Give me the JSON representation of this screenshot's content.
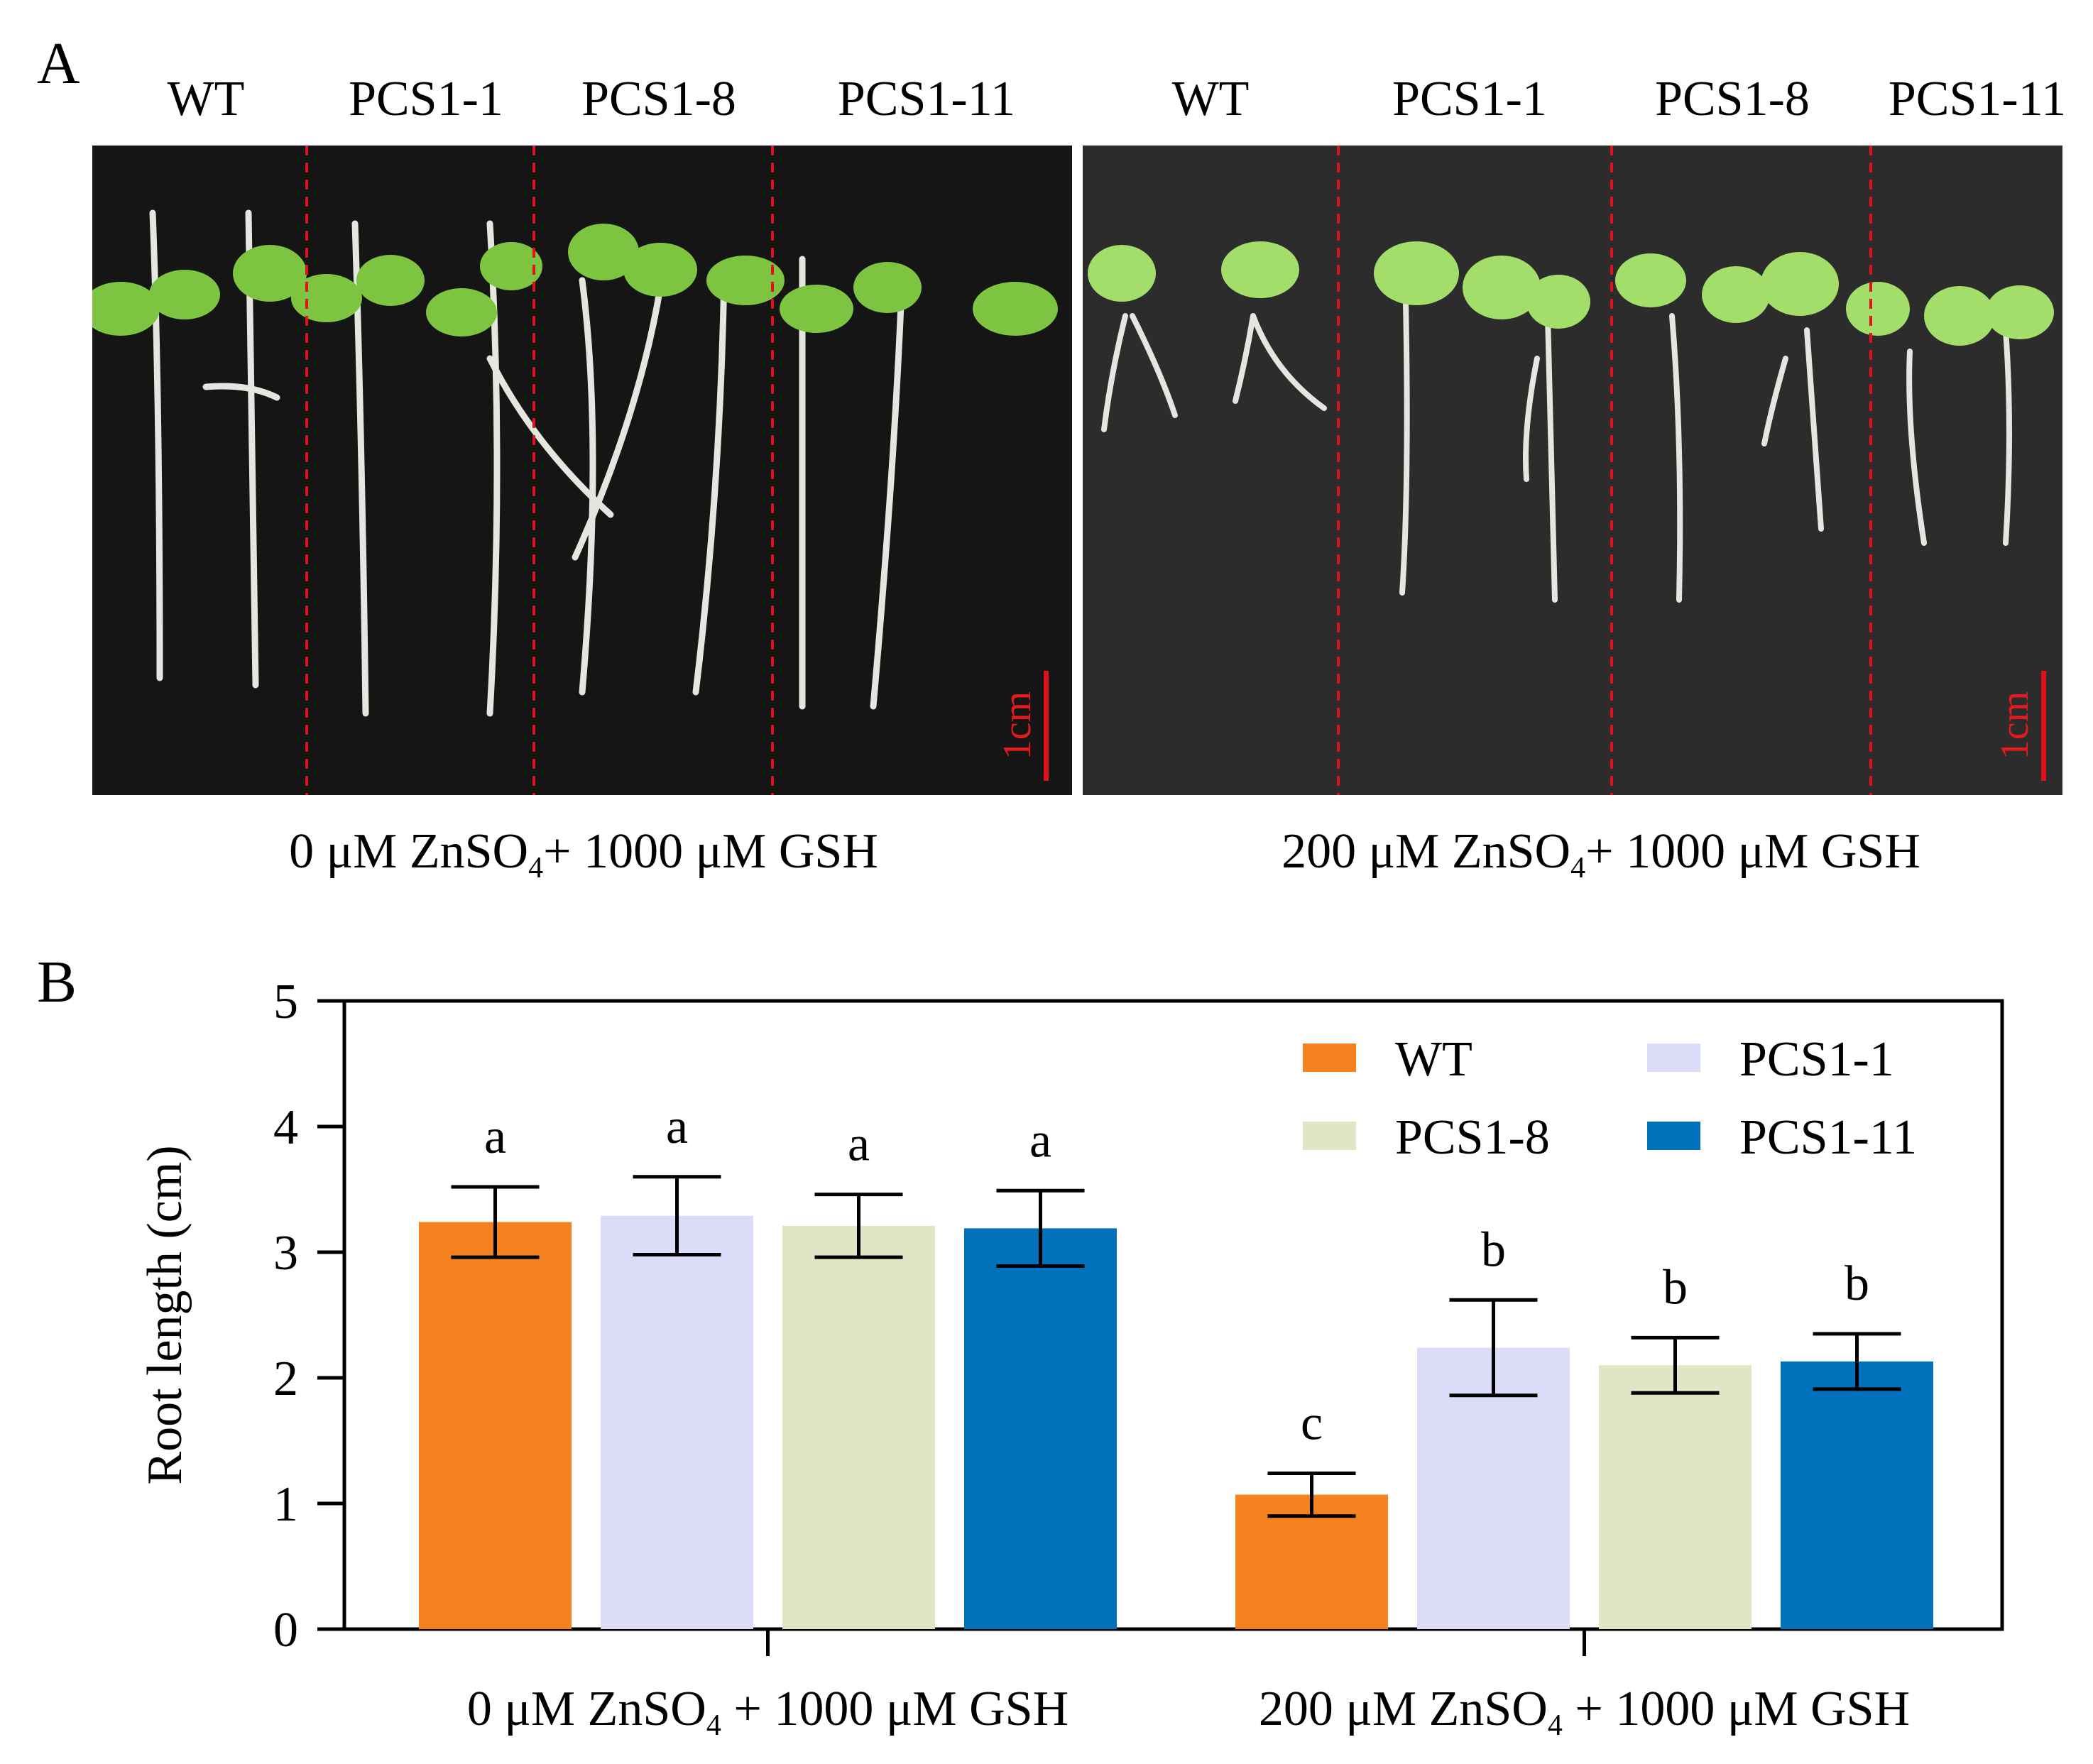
{
  "panel_a": {
    "letter": "A",
    "left_photo": {
      "genotypes": [
        "WT",
        "PCS1-1",
        "PCS1-8",
        "PCS1-11"
      ],
      "condition": {
        "pre": "0 μM ZnSO",
        "sub": "4",
        "post": "+ 1000 μM GSH"
      },
      "scale_bar": "1cm"
    },
    "right_photo": {
      "genotypes": [
        "WT",
        "PCS1-1",
        "PCS1-8",
        "PCS1-11"
      ],
      "condition": {
        "pre": "200 μM ZnSO",
        "sub": "4",
        "post": "+ 1000 μM GSH"
      },
      "scale_bar": "1cm"
    }
  },
  "panel_b": {
    "letter": "B"
  },
  "colors": {
    "WT": "#f5821f",
    "PCS1-1": "#dcdcf8",
    "PCS1-8": "#e0e5c6",
    "PCS1-11": "#0071ba",
    "divider": "#e0111a",
    "photo_left_bg": "#141414",
    "photo_right_bg": "#2a2a2a"
  },
  "chart_data": {
    "type": "bar",
    "ylabel": "Root length (cm)",
    "ylim": [
      0,
      5
    ],
    "yticks": [
      0,
      1,
      2,
      3,
      4,
      5
    ],
    "legend_position": "top-right",
    "groups": [
      {
        "pre": "0 μM ZnSO",
        "sub": "4",
        "post": "+ 1000 μM GSH"
      },
      {
        "pre": "200 μM ZnSO",
        "sub": "4",
        "post": "+ 1000 μM GSH"
      }
    ],
    "series": [
      {
        "name": "WT",
        "values": [
          3.24,
          1.07
        ],
        "errors": [
          0.28,
          0.17
        ],
        "letters": [
          "a",
          "c"
        ]
      },
      {
        "name": "PCS1-1",
        "values": [
          3.29,
          2.24
        ],
        "errors": [
          0.31,
          0.38
        ],
        "letters": [
          "a",
          "b"
        ]
      },
      {
        "name": "PCS1-8",
        "values": [
          3.21,
          2.1
        ],
        "errors": [
          0.25,
          0.22
        ],
        "letters": [
          "a",
          "b"
        ]
      },
      {
        "name": "PCS1-11",
        "values": [
          3.19,
          2.13
        ],
        "errors": [
          0.3,
          0.22
        ],
        "letters": [
          "a",
          "b"
        ]
      }
    ]
  }
}
